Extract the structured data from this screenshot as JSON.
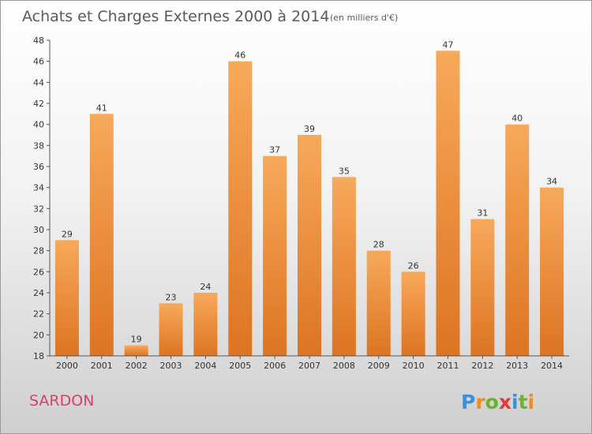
{
  "chart_data": {
    "type": "bar",
    "title": "Achats et Charges Externes 2000 à 2014",
    "subtitle": "(en milliers d'€)",
    "categories": [
      "2000",
      "2001",
      "2002",
      "2003",
      "2004",
      "2005",
      "2006",
      "2007",
      "2008",
      "2009",
      "2010",
      "2011",
      "2012",
      "2013",
      "2014"
    ],
    "values": [
      29,
      41,
      19,
      23,
      24,
      46,
      37,
      39,
      35,
      28,
      26,
      47,
      31,
      40,
      34
    ],
    "ylim": [
      18,
      48
    ],
    "yticks": [
      18,
      20,
      22,
      24,
      26,
      28,
      30,
      32,
      34,
      36,
      38,
      40,
      42,
      44,
      46,
      48
    ],
    "grid": false,
    "xlabel": "",
    "ylabel": ""
  },
  "place_name": "SARDON",
  "logo": {
    "text": "Proxiti",
    "letters": [
      "P",
      "r",
      "o",
      "x",
      "i",
      "t",
      "i"
    ],
    "letter_colors": [
      "#3f8fd8",
      "#f08a1c",
      "#6ab42d",
      "#e03a3a",
      "#3f8fd8",
      "#6ab42d",
      "#f08a1c"
    ]
  },
  "colors": {
    "bar_top": "#f7a95a",
    "bar_bottom": "#dd7422",
    "axis": "#555555"
  }
}
